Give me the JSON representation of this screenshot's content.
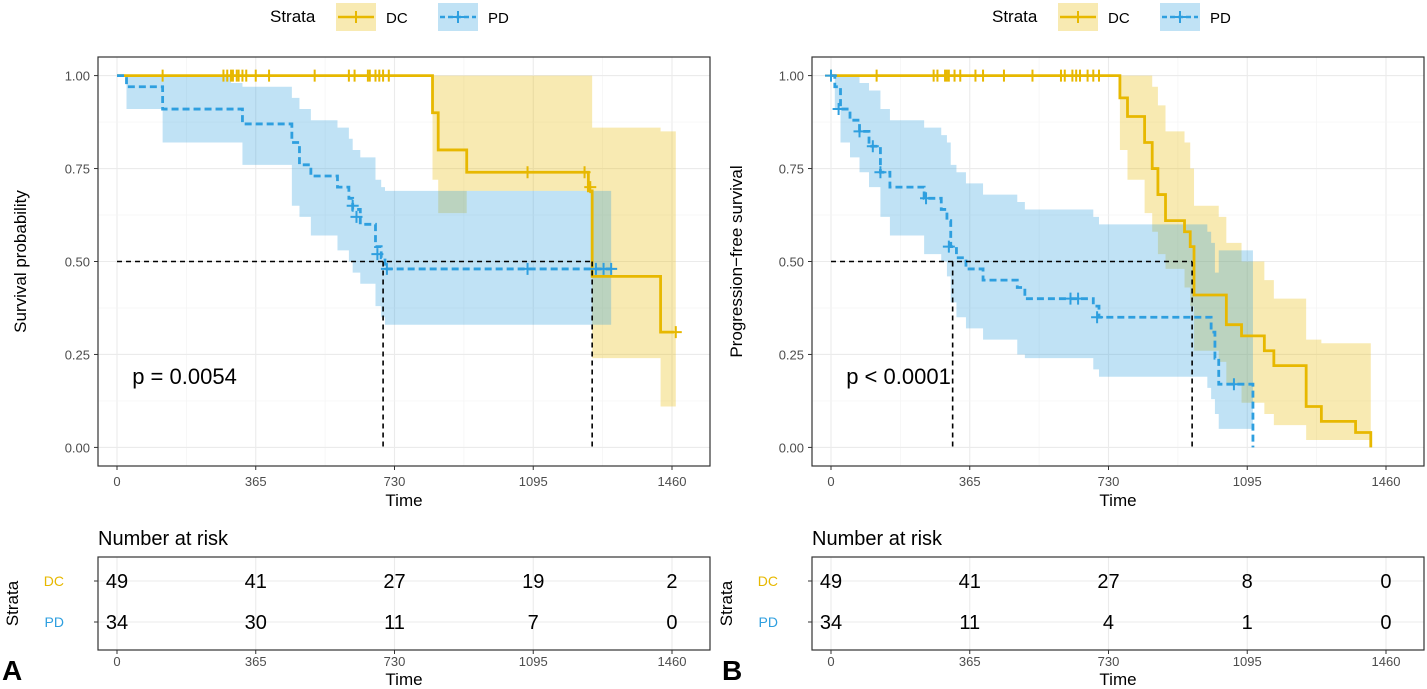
{
  "colors": {
    "dc": "#E7B800",
    "pd": "#2E9FDF",
    "grid": "#EBEBEB",
    "axis": "#333333",
    "text": "#000000"
  },
  "legend": {
    "title": "Strata",
    "dc_label": "DC",
    "pd_label": "PD"
  },
  "chart_data": [
    {
      "type": "line",
      "panel_label": "A",
      "ylabel": "Survival probability",
      "xlabel": "Time",
      "xlim": [
        -50,
        1560
      ],
      "ylim": [
        -0.05,
        1.05
      ],
      "xticks": [
        0,
        365,
        730,
        1095,
        1460
      ],
      "xtick_labels": [
        "0",
        "365",
        "730",
        "1095",
        "1460"
      ],
      "yticks": [
        0,
        0.25,
        0.5,
        0.75,
        1.0
      ],
      "ytick_labels": [
        "0.00",
        "0.25",
        "0.50",
        "0.75",
        "1.00"
      ],
      "pvalue": "p = 0.0054",
      "median_lines": [
        {
          "x": 700,
          "y": 0.5
        },
        {
          "x": 1250,
          "y": 0.5
        }
      ],
      "series": [
        {
          "name": "DC",
          "color_key": "dc",
          "dashed": false,
          "steps": [
            [
              0,
              1.0
            ],
            [
              830,
              0.9
            ],
            [
              845,
              0.8
            ],
            [
              920,
              0.74
            ],
            [
              1240,
              0.69
            ],
            [
              1250,
              0.46
            ],
            [
              1430,
              0.31
            ],
            [
              1465,
              0.31
            ]
          ],
          "ci": [
            [
              0,
              1,
              1
            ],
            [
              830,
              0.72,
              1
            ],
            [
              845,
              0.63,
              1
            ],
            [
              920,
              0.69,
              1
            ],
            [
              1250,
              0.24,
              0.86
            ],
            [
              1430,
              0.11,
              0.85
            ],
            [
              1470,
              0.11,
              0.85
            ]
          ],
          "censors": [
            [
              120,
              1
            ],
            [
              280,
              1
            ],
            [
              290,
              1
            ],
            [
              300,
              1
            ],
            [
              305,
              1
            ],
            [
              315,
              1
            ],
            [
              320,
              1
            ],
            [
              330,
              1
            ],
            [
              340,
              1
            ],
            [
              365,
              1
            ],
            [
              400,
              1
            ],
            [
              520,
              1
            ],
            [
              610,
              1
            ],
            [
              625,
              1
            ],
            [
              660,
              1
            ],
            [
              665,
              1
            ],
            [
              680,
              1
            ],
            [
              690,
              1
            ],
            [
              700,
              1
            ],
            [
              715,
              1
            ],
            [
              1080,
              0.74
            ],
            [
              1230,
              0.74
            ],
            [
              1245,
              0.7
            ],
            [
              1470,
              0.31
            ]
          ]
        },
        {
          "name": "PD",
          "color_key": "pd",
          "dashed": true,
          "steps": [
            [
              0,
              1.0
            ],
            [
              25,
              0.97
            ],
            [
              120,
              0.91
            ],
            [
              300,
              0.91
            ],
            [
              330,
              0.87
            ],
            [
              460,
              0.82
            ],
            [
              480,
              0.76
            ],
            [
              510,
              0.73
            ],
            [
              580,
              0.7
            ],
            [
              610,
              0.67
            ],
            [
              620,
              0.64
            ],
            [
              640,
              0.6
            ],
            [
              680,
              0.54
            ],
            [
              695,
              0.51
            ],
            [
              705,
              0.48
            ],
            [
              1250,
              0.48
            ],
            [
              1300,
              0.48
            ]
          ],
          "ci": [
            [
              0,
              1,
              1
            ],
            [
              25,
              0.91,
              1
            ],
            [
              120,
              0.82,
              1
            ],
            [
              300,
              0.82,
              0.98
            ],
            [
              330,
              0.76,
              0.97
            ],
            [
              460,
              0.65,
              0.94
            ],
            [
              480,
              0.62,
              0.91
            ],
            [
              510,
              0.57,
              0.88
            ],
            [
              580,
              0.53,
              0.86
            ],
            [
              610,
              0.5,
              0.83
            ],
            [
              620,
              0.47,
              0.8
            ],
            [
              640,
              0.44,
              0.78
            ],
            [
              680,
              0.38,
              0.72
            ],
            [
              695,
              0.35,
              0.7
            ],
            [
              705,
              0.33,
              0.69
            ],
            [
              1300,
              0.33,
              0.69
            ]
          ],
          "censors": [
            [
              620,
              0.65
            ],
            [
              630,
              0.62
            ],
            [
              685,
              0.52
            ],
            [
              710,
              0.48
            ],
            [
              1080,
              0.48
            ],
            [
              1260,
              0.48
            ],
            [
              1280,
              0.48
            ],
            [
              1300,
              0.48
            ]
          ]
        }
      ],
      "risk_table": {
        "title": "Number at risk",
        "strata_label": "Strata",
        "xlabel": "Time",
        "rows": [
          {
            "name": "DC",
            "color_key": "dc",
            "values": [
              "49",
              "41",
              "27",
              "19",
              "2"
            ]
          },
          {
            "name": "PD",
            "color_key": "pd",
            "values": [
              "34",
              "30",
              "11",
              "7",
              "0"
            ]
          }
        ]
      }
    },
    {
      "type": "line",
      "panel_label": "B",
      "ylabel": "Progression−free survival",
      "xlabel": "Time",
      "xlim": [
        -50,
        1560
      ],
      "ylim": [
        -0.05,
        1.05
      ],
      "xticks": [
        0,
        365,
        730,
        1095,
        1460
      ],
      "xtick_labels": [
        "0",
        "365",
        "730",
        "1095",
        "1460"
      ],
      "yticks": [
        0,
        0.25,
        0.5,
        0.75,
        1.0
      ],
      "ytick_labels": [
        "0.00",
        "0.25",
        "0.50",
        "0.75",
        "1.00"
      ],
      "pvalue": "p < 0.0001",
      "median_lines": [
        {
          "x": 320,
          "y": 0.5
        },
        {
          "x": 950,
          "y": 0.5
        }
      ],
      "series": [
        {
          "name": "DC",
          "color_key": "dc",
          "dashed": false,
          "steps": [
            [
              0,
              1.0
            ],
            [
              740,
              1.0
            ],
            [
              760,
              0.94
            ],
            [
              780,
              0.89
            ],
            [
              825,
              0.82
            ],
            [
              845,
              0.75
            ],
            [
              860,
              0.68
            ],
            [
              880,
              0.61
            ],
            [
              930,
              0.58
            ],
            [
              945,
              0.54
            ],
            [
              955,
              0.41
            ],
            [
              1020,
              0.41
            ],
            [
              1040,
              0.33
            ],
            [
              1065,
              0.33
            ],
            [
              1080,
              0.3
            ],
            [
              1140,
              0.26
            ],
            [
              1165,
              0.22
            ],
            [
              1230,
              0.22
            ],
            [
              1250,
              0.11
            ],
            [
              1290,
              0.07
            ],
            [
              1380,
              0.04
            ],
            [
              1420,
              0.0
            ]
          ],
          "ci": [
            [
              0,
              1,
              1
            ],
            [
              740,
              1,
              1
            ],
            [
              760,
              0.8,
              1
            ],
            [
              780,
              0.72,
              1
            ],
            [
              825,
              0.63,
              1
            ],
            [
              845,
              0.58,
              0.97
            ],
            [
              860,
              0.52,
              0.92
            ],
            [
              880,
              0.48,
              0.85
            ],
            [
              930,
              0.43,
              0.82
            ],
            [
              945,
              0.38,
              0.75
            ],
            [
              955,
              0.26,
              0.65
            ],
            [
              1020,
              0.23,
              0.62
            ],
            [
              1040,
              0.17,
              0.55
            ],
            [
              1080,
              0.12,
              0.5
            ],
            [
              1140,
              0.09,
              0.45
            ],
            [
              1165,
              0.06,
              0.4
            ],
            [
              1250,
              0.02,
              0.29
            ],
            [
              1290,
              0.02,
              0.28
            ],
            [
              1380,
              0.02,
              0.28
            ],
            [
              1420,
              0.0,
              0.28
            ]
          ],
          "censors": [
            [
              0,
              1
            ],
            [
              120,
              1
            ],
            [
              270,
              1
            ],
            [
              280,
              1
            ],
            [
              300,
              1
            ],
            [
              305,
              1
            ],
            [
              310,
              1
            ],
            [
              325,
              1
            ],
            [
              340,
              1
            ],
            [
              380,
              1
            ],
            [
              400,
              1
            ],
            [
              455,
              1
            ],
            [
              530,
              1
            ],
            [
              605,
              1
            ],
            [
              615,
              1
            ],
            [
              635,
              1
            ],
            [
              645,
              1
            ],
            [
              655,
              1
            ],
            [
              675,
              1
            ],
            [
              690,
              1
            ],
            [
              705,
              1
            ]
          ]
        },
        {
          "name": "PD",
          "color_key": "pd",
          "dashed": true,
          "steps": [
            [
              0,
              1.0
            ],
            [
              10,
              0.97
            ],
            [
              25,
              0.91
            ],
            [
              50,
              0.88
            ],
            [
              75,
              0.85
            ],
            [
              100,
              0.81
            ],
            [
              130,
              0.74
            ],
            [
              155,
              0.7
            ],
            [
              245,
              0.67
            ],
            [
              290,
              0.64
            ],
            [
              305,
              0.61
            ],
            [
              315,
              0.54
            ],
            [
              330,
              0.51
            ],
            [
              355,
              0.48
            ],
            [
              400,
              0.45
            ],
            [
              490,
              0.43
            ],
            [
              510,
              0.4
            ],
            [
              690,
              0.38
            ],
            [
              705,
              0.35
            ],
            [
              990,
              0.35
            ],
            [
              1000,
              0.31
            ],
            [
              1010,
              0.24
            ],
            [
              1020,
              0.17
            ],
            [
              1100,
              0.17
            ],
            [
              1110,
              0.0
            ]
          ],
          "ci": [
            [
              0,
              1,
              1
            ],
            [
              10,
              0.91,
              1
            ],
            [
              25,
              0.82,
              1
            ],
            [
              50,
              0.78,
              1
            ],
            [
              75,
              0.74,
              0.98
            ],
            [
              100,
              0.7,
              0.96
            ],
            [
              130,
              0.62,
              0.91
            ],
            [
              155,
              0.57,
              0.88
            ],
            [
              245,
              0.52,
              0.86
            ],
            [
              290,
              0.5,
              0.84
            ],
            [
              305,
              0.46,
              0.82
            ],
            [
              315,
              0.39,
              0.76
            ],
            [
              330,
              0.35,
              0.74
            ],
            [
              355,
              0.32,
              0.71
            ],
            [
              400,
              0.29,
              0.68
            ],
            [
              490,
              0.25,
              0.66
            ],
            [
              510,
              0.24,
              0.64
            ],
            [
              690,
              0.21,
              0.62
            ],
            [
              705,
              0.19,
              0.6
            ],
            [
              990,
              0.16,
              0.58
            ],
            [
              1000,
              0.13,
              0.55
            ],
            [
              1010,
              0.09,
              0.47
            ],
            [
              1020,
              0.05,
              0.53
            ],
            [
              1100,
              0.05,
              0.53
            ],
            [
              1110,
              0.0,
              0.53
            ]
          ],
          "censors": [
            [
              0,
              1
            ],
            [
              20,
              0.91
            ],
            [
              75,
              0.85
            ],
            [
              110,
              0.81
            ],
            [
              130,
              0.74
            ],
            [
              250,
              0.67
            ],
            [
              310,
              0.54
            ],
            [
              630,
              0.4
            ],
            [
              650,
              0.4
            ],
            [
              700,
              0.35
            ],
            [
              1060,
              0.17
            ]
          ]
        }
      ],
      "risk_table": {
        "title": "Number at risk",
        "strata_label": "Strata",
        "xlabel": "Time",
        "rows": [
          {
            "name": "DC",
            "color_key": "dc",
            "values": [
              "49",
              "41",
              "27",
              "8",
              "0"
            ]
          },
          {
            "name": "PD",
            "color_key": "pd",
            "values": [
              "34",
              "11",
              "4",
              "1",
              "0"
            ]
          }
        ]
      }
    }
  ]
}
